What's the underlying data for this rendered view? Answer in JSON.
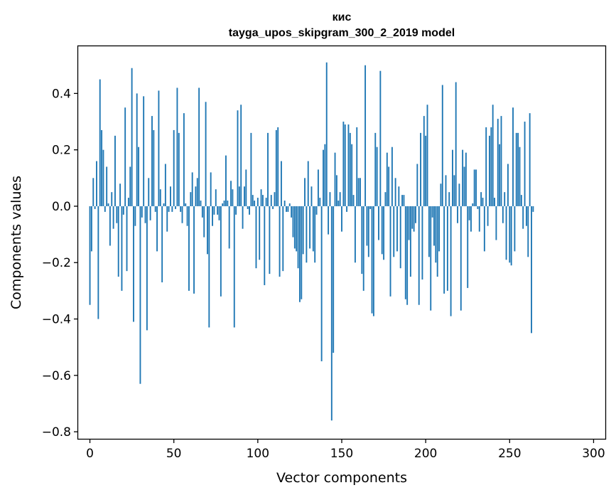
{
  "chart_data": {
    "type": "bar",
    "title": "кис",
    "subtitle": "tayga_upos_skipgram_300_2_2019 model",
    "xlabel": "Vector components",
    "ylabel": "Components values",
    "xlim": [
      -7,
      307
    ],
    "ylim": [
      -0.825,
      0.57
    ],
    "xticks": [
      0,
      50,
      100,
      150,
      200,
      250,
      300
    ],
    "xtick_labels": [
      "0",
      "50",
      "100",
      "150",
      "200",
      "250",
      "300"
    ],
    "yticks": [
      -0.8,
      -0.6,
      -0.4,
      -0.2,
      0.0,
      0.2,
      0.4
    ],
    "ytick_labels": [
      "−0.8",
      "−0.6",
      "−0.4",
      "−0.2",
      "0.0",
      "0.2",
      "0.4"
    ],
    "bar_color": "#1f77b4",
    "values": [
      -0.35,
      -0.16,
      0.1,
      -0.01,
      0.16,
      -0.4,
      0.45,
      0.27,
      0.2,
      -0.02,
      0.14,
      0.01,
      -0.14,
      0.05,
      -0.08,
      0.25,
      -0.06,
      -0.25,
      0.08,
      -0.3,
      -0.03,
      0.35,
      -0.23,
      0.03,
      0.14,
      0.49,
      -0.41,
      -0.07,
      0.4,
      0.21,
      -0.63,
      -0.04,
      0.39,
      -0.06,
      -0.44,
      0.1,
      -0.05,
      0.32,
      0.27,
      -0.02,
      -0.16,
      0.41,
      0.06,
      -0.27,
      0.01,
      0.15,
      -0.09,
      -0.02,
      0.07,
      -0.02,
      0.27,
      -0.01,
      0.42,
      0.26,
      -0.02,
      -0.06,
      0.33,
      0.01,
      -0.07,
      -0.3,
      0.05,
      0.12,
      -0.31,
      0.07,
      0.1,
      0.42,
      0.02,
      -0.04,
      -0.11,
      0.37,
      -0.17,
      -0.43,
      0.12,
      -0.07,
      -0.03,
      0.06,
      -0.03,
      -0.05,
      -0.32,
      0.01,
      0.02,
      0.18,
      0.02,
      -0.15,
      0.09,
      0.06,
      -0.43,
      -0.03,
      0.34,
      0.07,
      0.36,
      -0.08,
      0.07,
      0.13,
      -0.01,
      -0.03,
      0.26,
      0.04,
      0.02,
      -0.22,
      0.03,
      -0.19,
      0.06,
      0.04,
      -0.28,
      0.03,
      0.26,
      -0.24,
      0.04,
      -0.01,
      0.05,
      0.27,
      0.28,
      -0.25,
      0.16,
      -0.23,
      0.02,
      -0.02,
      -0.02,
      0.01,
      -0.04,
      -0.11,
      -0.15,
      -0.16,
      -0.22,
      -0.34,
      -0.33,
      -0.17,
      0.1,
      -0.2,
      0.16,
      -0.15,
      0.07,
      -0.16,
      -0.2,
      -0.03,
      0.13,
      0.03,
      -0.55,
      0.2,
      0.22,
      0.51,
      -0.1,
      0.05,
      -0.76,
      -0.52,
      0.19,
      0.11,
      0.02,
      0.05,
      -0.09,
      0.3,
      0.29,
      -0.02,
      0.29,
      0.26,
      0.22,
      0.04,
      -0.2,
      0.28,
      0.1,
      0.1,
      -0.24,
      -0.3,
      0.5,
      -0.14,
      -0.18,
      -0.01,
      -0.38,
      -0.39,
      0.26,
      0.21,
      -0.12,
      0.48,
      -0.17,
      -0.19,
      0.05,
      0.19,
      0.14,
      -0.32,
      0.21,
      -0.18,
      0.1,
      -0.16,
      0.07,
      -0.22,
      0.04,
      0.04,
      -0.33,
      -0.35,
      -0.12,
      -0.25,
      -0.08,
      -0.09,
      -0.06,
      0.15,
      -0.35,
      0.26,
      -0.26,
      0.32,
      0.25,
      0.36,
      -0.18,
      -0.37,
      -0.04,
      -0.14,
      -0.2,
      -0.25,
      -0.16,
      0.08,
      0.43,
      -0.31,
      0.11,
      -0.3,
      0.05,
      -0.39,
      0.2,
      0.11,
      0.44,
      -0.06,
      0.08,
      -0.37,
      0.2,
      0.14,
      0.19,
      -0.29,
      -0.05,
      -0.09,
      0.01,
      0.13,
      0.13,
      -0.01,
      -0.09,
      0.05,
      0.03,
      -0.16,
      0.28,
      -0.07,
      0.25,
      0.28,
      0.36,
      0.03,
      -0.12,
      0.31,
      0.22,
      0.32,
      -0.06,
      0.05,
      -0.19,
      0.15,
      -0.2,
      -0.21,
      0.35,
      -0.16,
      0.26,
      0.26,
      0.21,
      0.04,
      -0.08,
      0.3,
      -0.07,
      -0.18,
      0.33,
      -0.45,
      -0.02
    ]
  }
}
